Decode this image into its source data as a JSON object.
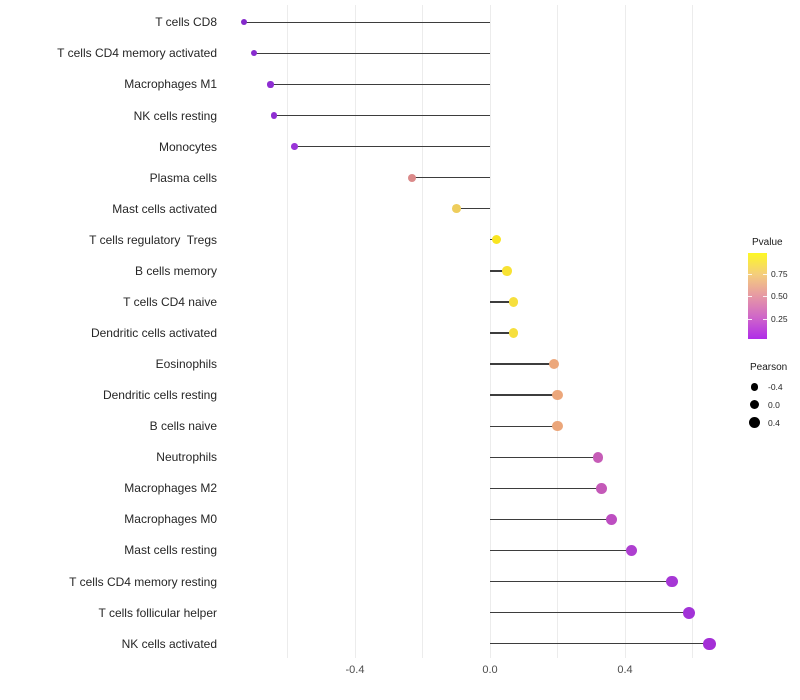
{
  "chart_data": {
    "type": "lollipop",
    "title": "",
    "xlabel": "",
    "ylabel": "",
    "x_tick_labels": [
      "-0.4",
      "0.0",
      "0.4"
    ],
    "x_tick_values": [
      -0.4,
      0.0,
      0.4
    ],
    "x_gridline_values": [
      -0.6,
      -0.4,
      -0.2,
      0.0,
      0.2,
      0.4,
      0.6
    ],
    "xlim": [
      -0.78,
      0.72
    ],
    "grid": "vertical-only",
    "points": [
      {
        "label": "T cells CD8",
        "pearson": -0.73,
        "dot_color": "#8429cb"
      },
      {
        "label": "T cells CD4 memory activated",
        "pearson": -0.7,
        "dot_color": "#892ccf"
      },
      {
        "label": "Macrophages M1",
        "pearson": -0.65,
        "dot_color": "#8e2ed2"
      },
      {
        "label": "NK cells resting",
        "pearson": -0.64,
        "dot_color": "#8f2fd2"
      },
      {
        "label": "Monocytes",
        "pearson": -0.58,
        "dot_color": "#9a35d8"
      },
      {
        "label": "Plasma cells",
        "pearson": -0.23,
        "dot_color": "#db8a8a"
      },
      {
        "label": "Mast cells activated",
        "pearson": -0.1,
        "dot_color": "#eecd5c"
      },
      {
        "label": "T cells regulatory  Tregs",
        "pearson": 0.02,
        "dot_color": "#f9e521"
      },
      {
        "label": "B cells memory",
        "pearson": 0.05,
        "dot_color": "#f8e233"
      },
      {
        "label": "T cells CD4 naive",
        "pearson": 0.07,
        "dot_color": "#f6df3d"
      },
      {
        "label": "Dendritic cells activated",
        "pearson": 0.07,
        "dot_color": "#f6df3d"
      },
      {
        "label": "Eosinophils",
        "pearson": 0.19,
        "dot_color": "#eca77b"
      },
      {
        "label": "Dendritic cells resting",
        "pearson": 0.2,
        "dot_color": "#eca77b"
      },
      {
        "label": "B cells naive",
        "pearson": 0.2,
        "dot_color": "#eba67a"
      },
      {
        "label": "Neutrophils",
        "pearson": 0.32,
        "dot_color": "#c65cb7"
      },
      {
        "label": "Macrophages M2",
        "pearson": 0.33,
        "dot_color": "#c459b8"
      },
      {
        "label": "Macrophages M0",
        "pearson": 0.36,
        "dot_color": "#bd4ec1"
      },
      {
        "label": "Mast cells resting",
        "pearson": 0.42,
        "dot_color": "#ae3fd0"
      },
      {
        "label": "T cells CD4 memory resting",
        "pearson": 0.54,
        "dot_color": "#a637d5"
      },
      {
        "label": "T cells follicular helper",
        "pearson": 0.59,
        "dot_color": "#a233d7"
      },
      {
        "label": "NK cells activated",
        "pearson": 0.65,
        "dot_color": "#a42fd6"
      }
    ],
    "legend": {
      "colorbar": {
        "title": "Pvalue",
        "tick_labels": [
          "0.75",
          "0.50",
          "0.25"
        ],
        "tick_values": [
          0.75,
          0.5,
          0.25
        ],
        "range": [
          0.02,
          0.99
        ],
        "gradient_bottom_to_top": [
          "#b02ce8",
          "#cf66c9",
          "#e698a4",
          "#f4cd7d",
          "#fdf824"
        ]
      },
      "size": {
        "title": "Pearson",
        "items": [
          {
            "label": "-0.4",
            "value": -0.4
          },
          {
            "label": "0.0",
            "value": 0.0
          },
          {
            "label": "0.4",
            "value": 0.4
          }
        ],
        "dot_color": "#000000"
      }
    },
    "colors": {
      "stem": "#3d3d3d",
      "gridline": "#ececec",
      "axis_text": "#4d4d4d",
      "category_text": "#262626",
      "background": "#ffffff"
    }
  }
}
